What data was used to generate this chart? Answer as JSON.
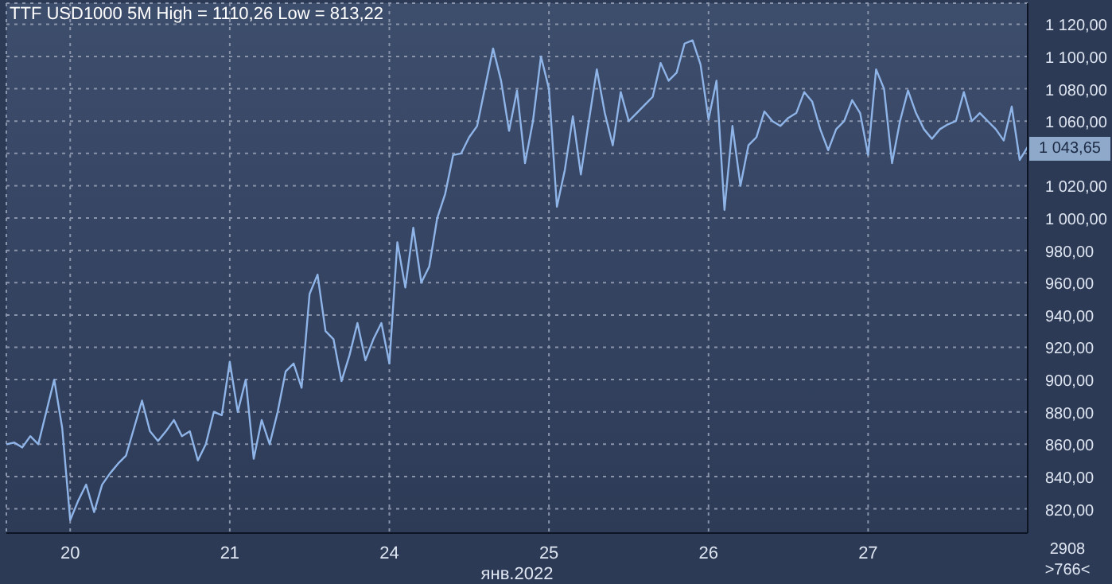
{
  "chart_data": {
    "type": "line",
    "title": "TTF USD1000 5M High = 1110,26 Low = 813,22",
    "xlabel": "янв.2022",
    "categories": [
      null,
      null,
      null,
      null,
      null,
      null,
      null,
      null,
      "20",
      null,
      null,
      null,
      null,
      null,
      null,
      null,
      null,
      null,
      null,
      null,
      null,
      null,
      null,
      null,
      null,
      null,
      null,
      null,
      "21",
      null,
      null,
      null,
      null,
      null,
      null,
      null,
      null,
      null,
      null,
      null,
      null,
      null,
      null,
      null,
      null,
      null,
      null,
      null,
      "24",
      null,
      null,
      null,
      null,
      null,
      null,
      null,
      null,
      null,
      null,
      null,
      null,
      null,
      null,
      null,
      null,
      null,
      null,
      null,
      "25",
      null,
      null,
      null,
      null,
      null,
      null,
      null,
      null,
      null,
      null,
      null,
      null,
      null,
      null,
      null,
      null,
      null,
      null,
      null,
      "26",
      null,
      null,
      null,
      null,
      null,
      null,
      null,
      null,
      null,
      null,
      null,
      null,
      null,
      null,
      null,
      null,
      null,
      null,
      null,
      "27",
      null,
      null,
      null,
      null,
      null,
      null,
      null,
      null,
      null,
      null,
      null,
      null,
      null,
      null,
      null,
      null,
      null,
      null,
      null,
      null
    ],
    "series": [
      {
        "color": "#8fb4e8",
        "values": [
          860,
          861,
          858,
          865,
          860,
          880,
          900,
          870,
          813,
          825,
          835,
          818,
          835,
          842,
          848,
          853,
          870,
          887,
          868,
          862,
          868,
          875,
          865,
          868,
          850,
          860,
          880,
          878,
          911,
          880,
          900,
          851,
          875,
          860,
          880,
          905,
          910,
          895,
          953,
          965,
          930,
          925,
          899,
          915,
          935,
          912,
          925,
          935,
          910,
          985,
          957,
          994,
          960,
          970,
          1000,
          1015,
          1039,
          1040,
          1050,
          1057,
          1081,
          1105,
          1085,
          1054,
          1079,
          1034,
          1060,
          1100,
          1080,
          1007,
          1030,
          1063,
          1027,
          1060,
          1092,
          1065,
          1045,
          1078,
          1060,
          1065,
          1070,
          1075,
          1096,
          1085,
          1090,
          1108,
          1110,
          1095,
          1061,
          1085,
          1005,
          1057,
          1020,
          1045,
          1050,
          1066,
          1060,
          1057,
          1062,
          1065,
          1078,
          1072,
          1055,
          1042,
          1055,
          1060,
          1073,
          1065,
          1039,
          1092,
          1080,
          1034,
          1060,
          1079,
          1065,
          1055,
          1049,
          1055,
          1058,
          1060,
          1078,
          1060,
          1065,
          1060,
          1055,
          1048,
          1069,
          1036,
          1044
        ]
      }
    ],
    "ylim": [
      805,
      1133
    ],
    "yticks": [
      {
        "value": 820,
        "label": "820,00"
      },
      {
        "value": 840,
        "label": "840,00"
      },
      {
        "value": 860,
        "label": "860,00"
      },
      {
        "value": 880,
        "label": "880,00"
      },
      {
        "value": 900,
        "label": "900,00"
      },
      {
        "value": 920,
        "label": "920,00"
      },
      {
        "value": 940,
        "label": "940,00"
      },
      {
        "value": 960,
        "label": "960,00"
      },
      {
        "value": 980,
        "label": "980,00"
      },
      {
        "value": 1000,
        "label": "1 000,00"
      },
      {
        "value": 1020,
        "label": "1 020,00"
      },
      {
        "value": 1040,
        "label": null
      },
      {
        "value": 1060,
        "label": "1 060,00"
      },
      {
        "value": 1080,
        "label": "1 080,00"
      },
      {
        "value": 1100,
        "label": "1 100,00"
      },
      {
        "value": 1120,
        "label": "1 120,00"
      }
    ],
    "annotations": [
      "1 043,65",
      "2908",
      ">766<"
    ],
    "grid": true,
    "marker": "none",
    "line_style": "solid"
  }
}
